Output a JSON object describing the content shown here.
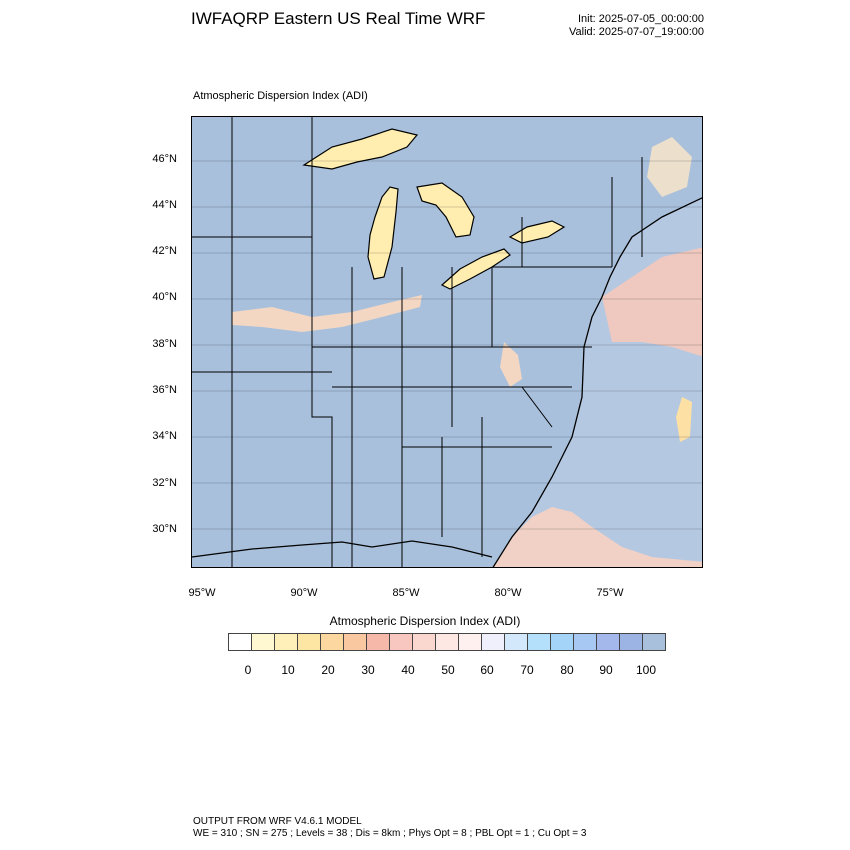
{
  "header": {
    "title": "IWFAQRP Eastern US Real Time WRF",
    "init": "Init: 2025-07-05_00:00:00",
    "valid": "Valid: 2025-07-07_19:00:00"
  },
  "map": {
    "field_label": "Atmospheric Dispersion Index   (ADI)",
    "lat_labels": [
      "46°N",
      "44°N",
      "42°N",
      "40°N",
      "38°N",
      "36°N",
      "34°N",
      "32°N",
      "30°N"
    ],
    "lon_labels": [
      "95°W",
      "90°W",
      "85°W",
      "80°W",
      "75°W"
    ],
    "colors": {
      "land_fill": "#a8c0dc",
      "ocean_fill": "#b5c8e2",
      "lake_fill": "#ffeeb0",
      "low_index": "#fbd9c0",
      "high_index": "#9cb4d8"
    }
  },
  "colorbar": {
    "title": "Atmospheric Dispersion Index  (ADI)",
    "colors": [
      "#ffffff",
      "#fff8d0",
      "#ffefb8",
      "#fde6a4",
      "#fcd8a0",
      "#f9c8a0",
      "#f6b8a8",
      "#f8c8c0",
      "#fad8d0",
      "#fde8e4",
      "#fff0f0",
      "#f0f0fc",
      "#d4e8fc",
      "#b4e0fc",
      "#a4d4f8",
      "#a8c8f4",
      "#a4b8ec",
      "#9cb4e4",
      "#a8c0dc"
    ],
    "ticks": [
      "0",
      "10",
      "20",
      "30",
      "40",
      "50",
      "60",
      "70",
      "80",
      "90",
      "100"
    ]
  },
  "footer": {
    "line1": "OUTPUT FROM WRF V4.6.1 MODEL",
    "line2": "WE = 310 ; SN = 275 ; Levels = 38 ; Dis = 8km ; Phys Opt = 8 ; PBL Opt = 1 ; Cu Opt = 3"
  }
}
